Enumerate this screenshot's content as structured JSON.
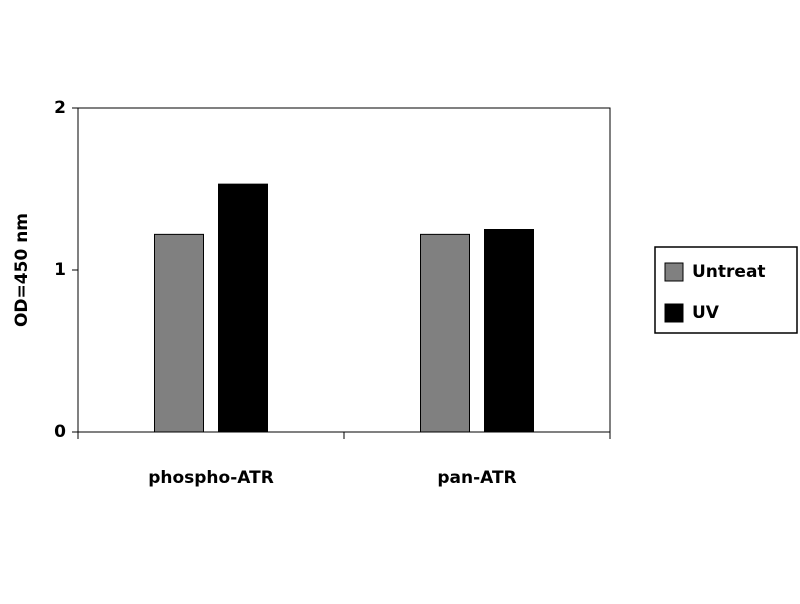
{
  "chart_data": {
    "type": "bar",
    "y_label": "OD=450 nm",
    "categories": [
      "phospho-ATR",
      "pan-ATR"
    ],
    "series": [
      {
        "name": "Untreat",
        "color": "#808080",
        "values": [
          1.22,
          1.22
        ]
      },
      {
        "name": "UV",
        "color": "#000000",
        "values": [
          1.53,
          1.25
        ]
      }
    ],
    "ylim": [
      0,
      2
    ],
    "yticks": [
      0,
      1,
      2
    ],
    "legend": "right"
  }
}
